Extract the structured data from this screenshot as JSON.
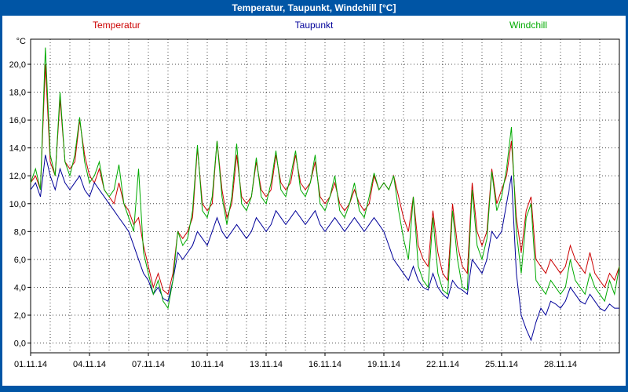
{
  "window": {
    "title": "Temperatur, Taupunkt, Windchill [°C]"
  },
  "legend": {
    "items": [
      {
        "label": "Temperatur",
        "color": "#cc0000"
      },
      {
        "label": "Taupunkt",
        "color": "#000099"
      },
      {
        "label": "Windchill",
        "color": "#00aa00"
      }
    ]
  },
  "chart_data": {
    "type": "line",
    "title": "Temperatur, Taupunkt, Windchill [°C]",
    "xlabel": "",
    "ylabel": "°C",
    "grid": "dashed, horizontal every 2.0 °C, vertical every 1 day",
    "legend_position": "top",
    "ylim": [
      0,
      22
    ],
    "y_ticks": [
      {
        "value": 20,
        "label": "20,0"
      },
      {
        "value": 18,
        "label": "18,0"
      },
      {
        "value": 16,
        "label": "16,0"
      },
      {
        "value": 14,
        "label": "14,0"
      },
      {
        "value": 12,
        "label": "12,0"
      },
      {
        "value": 10,
        "label": "10,0"
      },
      {
        "value": 8,
        "label": "8,0"
      },
      {
        "value": 6,
        "label": "6,0"
      },
      {
        "value": 4,
        "label": "4,0"
      },
      {
        "value": 2,
        "label": "2,0"
      },
      {
        "value": 0,
        "label": "0,0"
      }
    ],
    "x_days_range": [
      0,
      30
    ],
    "x_ticks": [
      {
        "day": 0,
        "label": "01.11.14"
      },
      {
        "day": 3,
        "label": "04.11.14"
      },
      {
        "day": 6,
        "label": "07.11.14"
      },
      {
        "day": 9,
        "label": "10.11.14"
      },
      {
        "day": 12,
        "label": "13.11.14"
      },
      {
        "day": 15,
        "label": "16.11.14"
      },
      {
        "day": 18,
        "label": "19.11.14"
      },
      {
        "day": 21,
        "label": "22.11.14"
      },
      {
        "day": 24,
        "label": "25.11.14"
      },
      {
        "day": 27,
        "label": "28.11.14"
      }
    ],
    "sample_interval_days": 0.25,
    "series": [
      {
        "name": "Temperatur",
        "color": "#cc0000",
        "values": [
          11.5,
          12.0,
          11.0,
          20.0,
          13.0,
          12.0,
          17.5,
          13.0,
          12.5,
          13.0,
          16.0,
          13.5,
          12.0,
          11.5,
          12.5,
          11.0,
          10.5,
          10.0,
          11.5,
          10.0,
          9.5,
          8.5,
          9.0,
          7.0,
          5.5,
          4.0,
          5.0,
          3.8,
          3.5,
          5.0,
          8.0,
          7.5,
          8.0,
          9.0,
          14.0,
          10.0,
          9.5,
          10.0,
          14.5,
          11.0,
          9.0,
          10.0,
          13.5,
          10.5,
          10.0,
          10.5,
          13.0,
          11.0,
          10.5,
          11.0,
          13.5,
          11.5,
          11.0,
          11.5,
          13.5,
          11.5,
          11.0,
          11.5,
          13.0,
          10.5,
          10.0,
          10.5,
          11.5,
          10.0,
          9.5,
          10.0,
          11.0,
          10.0,
          9.5,
          10.0,
          12.0,
          11.0,
          11.5,
          11.0,
          12.0,
          10.5,
          9.0,
          8.0,
          10.5,
          7.0,
          6.0,
          5.5,
          9.5,
          6.5,
          5.0,
          4.5,
          10.0,
          7.0,
          5.5,
          5.0,
          11.5,
          8.0,
          7.0,
          8.0,
          12.5,
          10.0,
          11.0,
          12.0,
          14.5,
          9.0,
          6.5,
          9.5,
          10.5,
          6.0,
          5.5,
          5.0,
          6.0,
          5.5,
          5.0,
          5.5,
          7.0,
          6.0,
          5.5,
          5.0,
          6.5,
          5.0,
          4.5,
          4.0,
          5.0,
          4.5,
          5.5
        ]
      },
      {
        "name": "Taupunkt",
        "color": "#000099",
        "values": [
          11.0,
          11.5,
          10.5,
          13.5,
          12.0,
          11.0,
          12.5,
          11.5,
          11.0,
          11.5,
          12.0,
          11.0,
          10.5,
          11.5,
          11.0,
          10.5,
          10.0,
          9.5,
          9.0,
          8.5,
          8.0,
          7.0,
          6.0,
          5.0,
          4.5,
          3.5,
          4.0,
          3.2,
          3.0,
          4.5,
          6.5,
          6.0,
          6.5,
          7.0,
          8.0,
          7.5,
          7.0,
          8.0,
          9.0,
          8.0,
          7.5,
          8.0,
          8.5,
          8.0,
          7.5,
          8.0,
          9.0,
          8.5,
          8.0,
          8.5,
          9.5,
          9.0,
          8.5,
          9.0,
          9.5,
          9.0,
          8.5,
          9.0,
          9.5,
          8.5,
          8.0,
          8.5,
          9.0,
          8.5,
          8.0,
          8.5,
          9.0,
          8.5,
          8.0,
          8.5,
          9.0,
          8.5,
          8.0,
          7.0,
          6.0,
          5.5,
          5.0,
          4.5,
          5.5,
          4.5,
          4.0,
          3.8,
          5.0,
          4.0,
          3.5,
          3.2,
          4.5,
          4.0,
          3.8,
          3.5,
          6.0,
          5.5,
          5.0,
          6.0,
          8.0,
          7.5,
          8.0,
          10.0,
          12.0,
          5.0,
          2.0,
          1.0,
          0.2,
          1.5,
          2.5,
          2.0,
          3.0,
          2.8,
          2.5,
          3.0,
          4.0,
          3.5,
          3.0,
          2.8,
          3.5,
          3.0,
          2.5,
          2.3,
          2.8,
          2.5,
          2.5
        ]
      },
      {
        "name": "Windchill",
        "color": "#00aa00",
        "values": [
          11.5,
          12.5,
          11.0,
          21.2,
          13.5,
          12.0,
          18.0,
          13.0,
          12.0,
          13.5,
          16.2,
          13.0,
          11.5,
          12.0,
          13.0,
          11.0,
          10.5,
          11.0,
          12.8,
          10.0,
          9.0,
          8.0,
          12.5,
          6.5,
          5.0,
          3.5,
          4.5,
          3.0,
          2.5,
          4.5,
          8.0,
          7.0,
          7.5,
          9.5,
          14.2,
          9.5,
          9.0,
          10.5,
          14.5,
          10.5,
          8.5,
          10.5,
          14.3,
          10.0,
          9.5,
          10.5,
          13.3,
          10.5,
          10.0,
          11.5,
          13.8,
          11.0,
          10.5,
          12.0,
          13.8,
          11.0,
          10.5,
          11.5,
          13.5,
          10.0,
          9.5,
          10.5,
          12.0,
          9.5,
          9.0,
          10.0,
          11.5,
          9.5,
          9.0,
          10.5,
          12.2,
          11.0,
          11.5,
          11.0,
          12.0,
          9.5,
          7.5,
          6.0,
          10.5,
          5.5,
          4.5,
          4.0,
          9.0,
          5.0,
          3.8,
          3.5,
          9.5,
          6.0,
          4.0,
          3.8,
          11.0,
          7.0,
          6.0,
          7.5,
          12.3,
          9.5,
          10.5,
          12.5,
          15.5,
          8.0,
          5.0,
          9.0,
          10.0,
          4.5,
          4.0,
          3.5,
          4.5,
          4.0,
          3.5,
          4.0,
          6.0,
          4.5,
          4.0,
          3.5,
          5.0,
          4.0,
          3.5,
          3.0,
          4.5,
          3.5,
          5.5
        ]
      }
    ]
  }
}
